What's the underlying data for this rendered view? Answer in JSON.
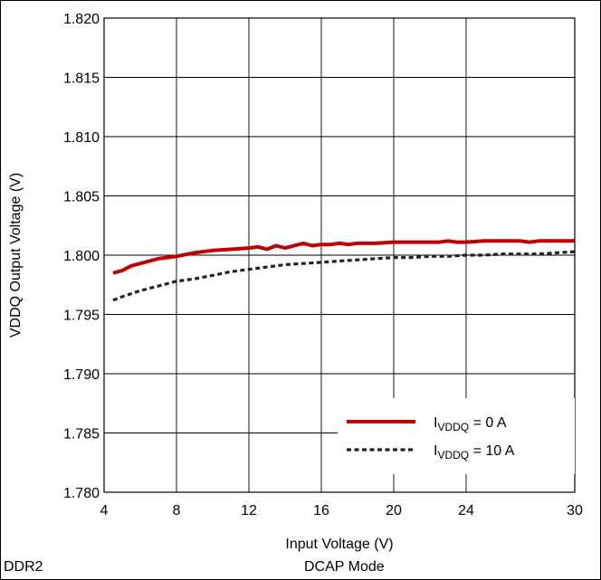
{
  "chart_data": {
    "type": "line",
    "xlabel": "Input Voltage (V)",
    "ylabel": "VDDQ Output Voltage (V)",
    "xlim": [
      4,
      30
    ],
    "ylim": [
      1.78,
      1.82
    ],
    "xticks": [
      4,
      8,
      12,
      16,
      20,
      24,
      30
    ],
    "xtick_labels": [
      "4",
      "8",
      "12",
      "16",
      "20",
      "24",
      "30"
    ],
    "yticks": [
      1.78,
      1.785,
      1.79,
      1.795,
      1.8,
      1.805,
      1.81,
      1.815,
      1.82
    ],
    "ytick_labels": [
      "1.780",
      "1.785",
      "1.790",
      "1.795",
      "1.800",
      "1.805",
      "1.810",
      "1.815",
      "1.820"
    ],
    "grid": true,
    "legend_position": "bottom-right",
    "series": [
      {
        "name": "IVDDQ = 0 A",
        "legend_main": "I",
        "legend_sub": "VDDQ",
        "legend_rest": " = 0 A",
        "color": "#c00000",
        "style": "solid",
        "x": [
          4.5,
          5.0,
          5.5,
          6.0,
          6.5,
          7.0,
          7.5,
          8.0,
          9.0,
          10.0,
          11.0,
          12.0,
          12.5,
          13.0,
          13.5,
          14.0,
          14.5,
          15.0,
          15.5,
          16.0,
          16.5,
          17.0,
          17.5,
          18.0,
          19.0,
          20.0,
          21.0,
          22.0,
          22.5,
          23.0,
          23.5,
          24.0,
          25.0,
          26.0,
          27.0,
          27.5,
          28.0,
          29.0,
          30.0
        ],
        "values": [
          1.7985,
          1.7987,
          1.7991,
          1.7993,
          1.7995,
          1.7997,
          1.7998,
          1.7999,
          1.8002,
          1.8004,
          1.8005,
          1.8006,
          1.8007,
          1.8005,
          1.8008,
          1.8006,
          1.8008,
          1.801,
          1.8008,
          1.8009,
          1.8009,
          1.801,
          1.8009,
          1.801,
          1.801,
          1.8011,
          1.8011,
          1.8011,
          1.8011,
          1.8012,
          1.8011,
          1.8011,
          1.8012,
          1.8012,
          1.8012,
          1.8011,
          1.8012,
          1.8012,
          1.8012
        ]
      },
      {
        "name": "IVDDQ = 10 A",
        "legend_main": "I",
        "legend_sub": "VDDQ",
        "legend_rest": " = 10 A",
        "color": "#222222",
        "style": "dashed",
        "x": [
          4.5,
          5.0,
          6.0,
          7.0,
          8.0,
          9.0,
          10.0,
          11.0,
          12.0,
          13.0,
          14.0,
          15.0,
          16.0,
          17.0,
          18.0,
          19.0,
          20.0,
          21.0,
          22.0,
          23.0,
          24.0,
          25.0,
          26.0,
          27.0,
          28.0,
          29.0,
          30.0
        ],
        "values": [
          1.7962,
          1.7965,
          1.797,
          1.7974,
          1.7978,
          1.798,
          1.7983,
          1.7986,
          1.7988,
          1.799,
          1.7992,
          1.7993,
          1.7994,
          1.7995,
          1.7996,
          1.7997,
          1.7998,
          1.7998,
          1.7999,
          1.7999,
          1.8,
          1.8,
          1.8001,
          1.8001,
          1.8001,
          1.8002,
          1.8003
        ]
      }
    ]
  },
  "footer": {
    "left": "DDR2",
    "center": "DCAP Mode"
  }
}
